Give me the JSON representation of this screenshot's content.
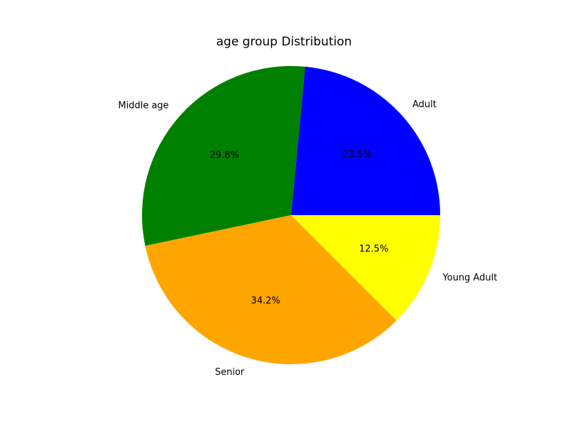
{
  "chart_data": {
    "type": "pie",
    "title": "age group Distribution",
    "categories": [
      "Adult",
      "Middle age",
      "Senior",
      "Young Adult"
    ],
    "values": [
      23.5,
      29.8,
      34.2,
      12.5
    ],
    "value_labels": [
      "23.5%",
      "29.8%",
      "34.2%",
      "12.5%"
    ],
    "colors": [
      "#0000ff",
      "#008000",
      "#ffa500",
      "#ffff00"
    ],
    "start_angle_deg": 0,
    "direction": "counterclockwise",
    "legend": "none"
  }
}
